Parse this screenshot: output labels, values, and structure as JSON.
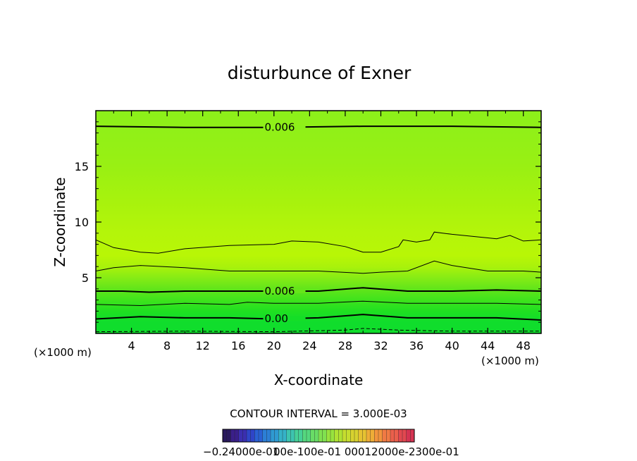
{
  "chart_data": {
    "type": "contour",
    "title": "disturbunce of Exner",
    "xlabel": "X-coordinate",
    "ylabel": "Z-coordinate",
    "x_unit": "(×1000 m)",
    "y_unit": "(×1000 m)",
    "xlim": [
      0,
      50
    ],
    "ylim": [
      0,
      20
    ],
    "x_ticks": [
      4,
      8,
      12,
      16,
      20,
      24,
      28,
      32,
      36,
      40,
      44,
      48
    ],
    "y_ticks": [
      5,
      10,
      15
    ],
    "contour_interval_text": "CONTOUR INTERVAL = 3.000E-03",
    "contours": [
      {
        "label": "0.006",
        "label_x": 18,
        "points": [
          [
            0,
            18.6
          ],
          [
            10,
            18.5
          ],
          [
            20,
            18.5
          ],
          [
            30,
            18.6
          ],
          [
            40,
            18.6
          ],
          [
            50,
            18.5
          ]
        ]
      },
      {
        "label": "",
        "points": [
          [
            0,
            8.4
          ],
          [
            2,
            7.7
          ],
          [
            5,
            7.3
          ],
          [
            7,
            7.2
          ],
          [
            10,
            7.6
          ],
          [
            15,
            7.9
          ],
          [
            20,
            8.0
          ],
          [
            22,
            8.3
          ],
          [
            25,
            8.2
          ],
          [
            28,
            7.8
          ],
          [
            30,
            7.3
          ],
          [
            32,
            7.3
          ],
          [
            34,
            7.8
          ],
          [
            34.5,
            8.4
          ],
          [
            36,
            8.2
          ],
          [
            37.5,
            8.4
          ],
          [
            38,
            9.1
          ],
          [
            40,
            8.9
          ],
          [
            45,
            8.5
          ],
          [
            46.5,
            8.8
          ],
          [
            48,
            8.3
          ],
          [
            50,
            8.4
          ]
        ]
      },
      {
        "label": "",
        "points": [
          [
            0,
            5.6
          ],
          [
            2,
            5.9
          ],
          [
            5,
            6.1
          ],
          [
            10,
            5.9
          ],
          [
            15,
            5.6
          ],
          [
            20,
            5.6
          ],
          [
            25,
            5.6
          ],
          [
            30,
            5.4
          ],
          [
            32,
            5.5
          ],
          [
            35,
            5.6
          ],
          [
            38,
            6.5
          ],
          [
            40,
            6.1
          ],
          [
            44,
            5.6
          ],
          [
            48,
            5.6
          ],
          [
            50,
            5.5
          ]
        ]
      },
      {
        "label": "0.006",
        "label_x": 18,
        "points": [
          [
            0,
            3.8
          ],
          [
            3,
            3.8
          ],
          [
            6,
            3.7
          ],
          [
            10,
            3.8
          ],
          [
            15,
            3.8
          ],
          [
            20,
            3.8
          ],
          [
            25,
            3.8
          ],
          [
            30,
            4.1
          ],
          [
            35,
            3.8
          ],
          [
            40,
            3.8
          ],
          [
            45,
            3.9
          ],
          [
            50,
            3.8
          ]
        ]
      },
      {
        "label": "",
        "points": [
          [
            0,
            2.6
          ],
          [
            5,
            2.5
          ],
          [
            10,
            2.7
          ],
          [
            15,
            2.6
          ],
          [
            17,
            2.8
          ],
          [
            20,
            2.7
          ],
          [
            25,
            2.7
          ],
          [
            30,
            2.9
          ],
          [
            35,
            2.7
          ],
          [
            40,
            2.7
          ],
          [
            45,
            2.7
          ],
          [
            50,
            2.6
          ]
        ]
      },
      {
        "label": "0.00",
        "label_x": 18,
        "points": [
          [
            0,
            1.3
          ],
          [
            5,
            1.5
          ],
          [
            10,
            1.4
          ],
          [
            15,
            1.4
          ],
          [
            20,
            1.3
          ],
          [
            25,
            1.4
          ],
          [
            30,
            1.7
          ],
          [
            35,
            1.4
          ],
          [
            40,
            1.4
          ],
          [
            45,
            1.4
          ],
          [
            50,
            1.2
          ]
        ]
      }
    ],
    "dashed_contours": [
      {
        "label": "",
        "points": [
          [
            0,
            0.15
          ],
          [
            10,
            0.2
          ],
          [
            20,
            0.15
          ],
          [
            28,
            0.3
          ],
          [
            30,
            0.45
          ],
          [
            34,
            0.3
          ],
          [
            40,
            0.2
          ],
          [
            50,
            0.2
          ]
        ]
      }
    ],
    "color_bands": [
      {
        "z": 20,
        "color": "#8cf01a"
      },
      {
        "z": 15,
        "color": "#99f013"
      },
      {
        "z": 12,
        "color": "#a7f20d"
      },
      {
        "z": 9,
        "color": "#b4f50a"
      },
      {
        "z": 7,
        "color": "#b8f606"
      },
      {
        "z": 6,
        "color": "#aaf20b"
      },
      {
        "z": 5,
        "color": "#86ec15"
      },
      {
        "z": 4,
        "color": "#62e51a"
      },
      {
        "z": 3,
        "color": "#3fe31c"
      },
      {
        "z": 2,
        "color": "#1fe021"
      },
      {
        "z": 1,
        "color": "#10dd2c"
      },
      {
        "z": 0,
        "color": "#10dd2c"
      }
    ],
    "colorbar": {
      "labels_text": "−0.24000e-01",
      "labels_overlap_text": "00e-100e-01 00012000e-2300e-01",
      "full_label": "−0.24000e−01 0.12000e−01 0.0000 0.12000e−01 0.24000e−01",
      "colors": [
        "#2a1a5e",
        "#3a1f8a",
        "#3b2fb0",
        "#2f45c8",
        "#2a61d4",
        "#2c7fd6",
        "#2f9ad2",
        "#35b2c8",
        "#3dc4b0",
        "#46d098",
        "#55d87e",
        "#69dd66",
        "#80e150",
        "#98e33e",
        "#b0e233",
        "#c6dd2f",
        "#d8d22f",
        "#e6c232",
        "#eead37",
        "#f2943d",
        "#f07a44",
        "#ea5f4b",
        "#e14850",
        "#d53452"
      ]
    }
  }
}
